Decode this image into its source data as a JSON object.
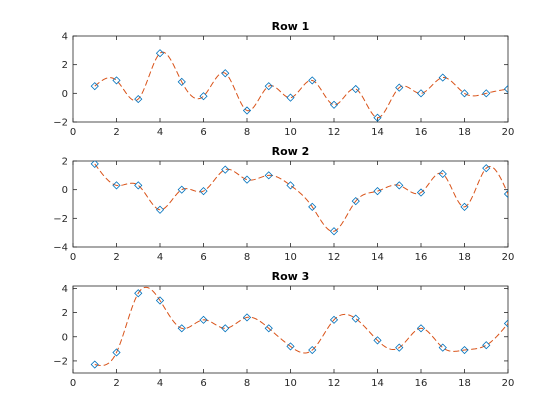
{
  "figure": {
    "background": "#ffffff",
    "series_line_color": "#d95319",
    "series_marker_color": "#0072bd"
  },
  "chart_data": [
    {
      "type": "line",
      "title": "Row 1",
      "xlim": [
        0,
        20
      ],
      "ylim": [
        -2,
        4
      ],
      "xticks": [
        0,
        2,
        4,
        6,
        8,
        10,
        12,
        14,
        16,
        18,
        20
      ],
      "yticks": [
        -2,
        0,
        2,
        4
      ],
      "x": [
        1,
        2,
        3,
        4,
        5,
        6,
        7,
        8,
        9,
        10,
        11,
        12,
        13,
        14,
        15,
        16,
        17,
        18,
        19,
        20
      ],
      "series": [
        {
          "values": [
            0.5,
            0.9,
            -0.4,
            2.8,
            0.8,
            -0.2,
            1.4,
            -1.2,
            0.5,
            -0.3,
            0.9,
            -0.8,
            0.3,
            -1.7,
            0.4,
            0.0,
            1.1,
            0.0,
            0.0,
            0.3
          ],
          "line_style": "dashed",
          "marker": "square"
        }
      ]
    },
    {
      "type": "line",
      "title": "Row 2",
      "xlim": [
        0,
        20
      ],
      "ylim": [
        -4,
        2
      ],
      "xticks": [
        0,
        2,
        4,
        6,
        8,
        10,
        12,
        14,
        16,
        18,
        20
      ],
      "yticks": [
        -4,
        -2,
        0,
        2
      ],
      "x": [
        1,
        2,
        3,
        4,
        5,
        6,
        7,
        8,
        9,
        10,
        11,
        12,
        13,
        14,
        15,
        16,
        17,
        18,
        19,
        20
      ],
      "series": [
        {
          "values": [
            1.8,
            0.3,
            0.3,
            -1.4,
            0.0,
            -0.1,
            1.4,
            0.7,
            1.0,
            0.3,
            -1.2,
            -2.9,
            -0.8,
            -0.1,
            0.3,
            -0.2,
            1.1,
            -1.2,
            1.5,
            -0.3
          ],
          "line_style": "dashed",
          "marker": "square"
        }
      ]
    },
    {
      "type": "line",
      "title": "Row 3",
      "xlim": [
        0,
        20
      ],
      "ylim": [
        -3,
        4.2
      ],
      "xticks": [
        0,
        2,
        4,
        6,
        8,
        10,
        12,
        14,
        16,
        18,
        20
      ],
      "yticks": [
        -2,
        0,
        2,
        4
      ],
      "x": [
        1,
        2,
        3,
        4,
        5,
        6,
        7,
        8,
        9,
        10,
        11,
        12,
        13,
        14,
        15,
        16,
        17,
        18,
        19,
        20
      ],
      "series": [
        {
          "values": [
            -2.3,
            -1.3,
            3.6,
            3.0,
            0.7,
            1.4,
            0.7,
            1.6,
            0.7,
            -0.8,
            -1.1,
            1.4,
            1.5,
            -0.3,
            -0.9,
            0.7,
            -0.9,
            -1.1,
            -0.7,
            1.1
          ],
          "line_style": "dashed",
          "marker": "square"
        }
      ]
    }
  ]
}
